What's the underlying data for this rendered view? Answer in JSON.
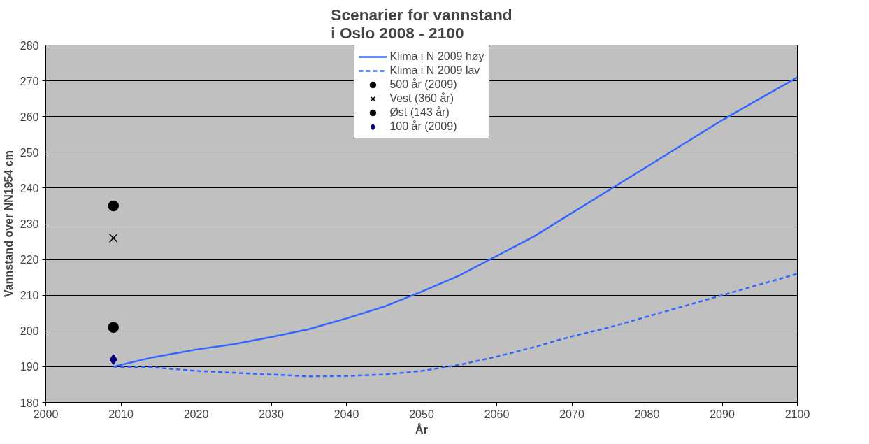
{
  "chart_data": {
    "type": "line",
    "title": "Scenarier for vannstand\ni Oslo 2008 - 2100",
    "xlabel": "År",
    "ylabel": "Vannstand over NN1954 cm",
    "xlim": [
      2000,
      2100
    ],
    "xticks": [
      2000,
      2010,
      2020,
      2030,
      2040,
      2050,
      2060,
      2070,
      2080,
      2090,
      2100
    ],
    "ylim": [
      180,
      280
    ],
    "yticks": [
      180,
      190,
      200,
      210,
      220,
      230,
      240,
      250,
      260,
      270,
      280
    ],
    "grid": "y",
    "legend": "top",
    "series": [
      {
        "name": "Klima i N 2009 høy",
        "line_style": "solid",
        "color": "#3366ff",
        "x": [
          2009,
          2014,
          2020,
          2025,
          2030,
          2035,
          2040,
          2045,
          2050,
          2055,
          2060,
          2065,
          2070,
          2075,
          2080,
          2085,
          2090,
          2095,
          2100
        ],
        "values": [
          190,
          192.5,
          194.8,
          196.3,
          198.3,
          200.5,
          203.5,
          206.8,
          211,
          215.5,
          221,
          226.5,
          233,
          239.5,
          246,
          252.5,
          259,
          265,
          271
        ]
      },
      {
        "name": "Klima i N 2009 lav",
        "line_style": "dashed",
        "color": "#3366ff",
        "x": [
          2009,
          2015,
          2020,
          2025,
          2030,
          2035,
          2040,
          2045,
          2050,
          2055,
          2060,
          2065,
          2070,
          2075,
          2080,
          2085,
          2090,
          2095,
          2100
        ],
        "values": [
          190,
          189.7,
          188.8,
          188.3,
          187.8,
          187.3,
          187.4,
          187.8,
          188.8,
          190.5,
          192.8,
          195.5,
          198.5,
          201,
          204,
          207,
          210,
          213,
          216
        ]
      },
      {
        "name": "500 år (2009)",
        "type": "scatter",
        "marker": "circle",
        "color": "#000000",
        "x": [
          2009
        ],
        "values": [
          235
        ]
      },
      {
        "name": "Vest (360 år)",
        "type": "scatter",
        "marker": "cross",
        "color": "#000000",
        "x": [
          2009
        ],
        "values": [
          226
        ]
      },
      {
        "name": "Øst (143 år)",
        "type": "scatter",
        "marker": "circle",
        "color": "#000000",
        "x": [
          2009
        ],
        "values": [
          201
        ]
      },
      {
        "name": "100 år (2009)",
        "type": "scatter",
        "marker": "diamond",
        "color": "#000080",
        "x": [
          2009
        ],
        "values": [
          192
        ]
      }
    ]
  }
}
